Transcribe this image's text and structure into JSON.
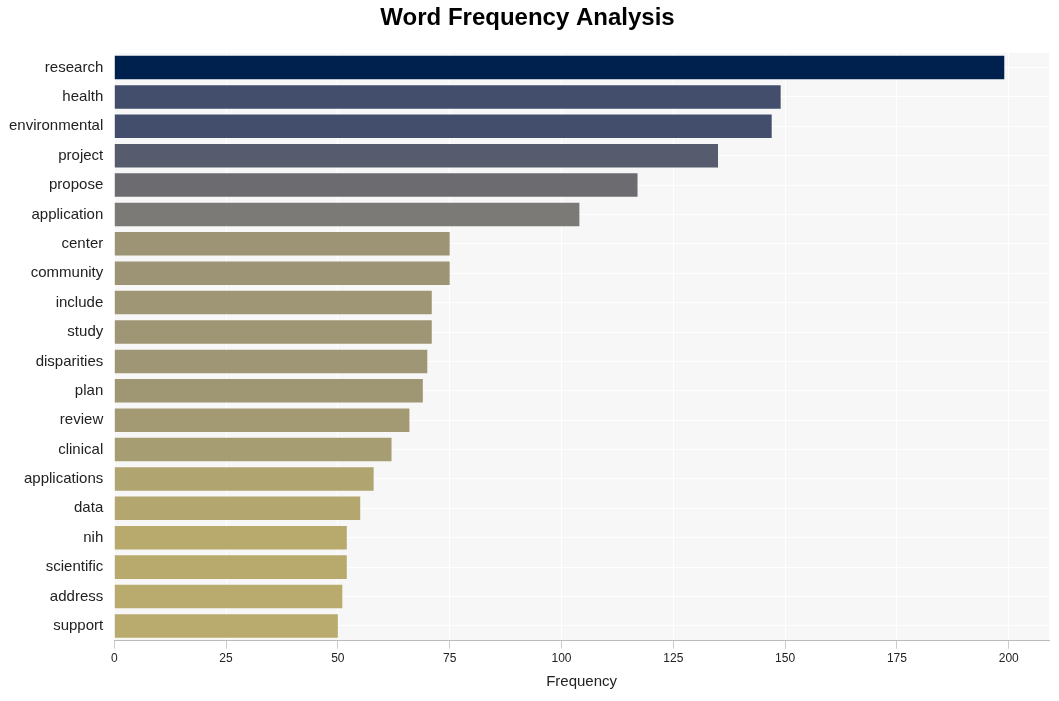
{
  "chart_data": {
    "type": "bar",
    "orientation": "horizontal",
    "title": "Word Frequency Analysis",
    "x_label": "Frequency",
    "categories": [
      "research",
      "health",
      "environmental",
      "project",
      "propose",
      "application",
      "center",
      "community",
      "include",
      "study",
      "disparities",
      "plan",
      "review",
      "clinical",
      "applications",
      "data",
      "nih",
      "scientific",
      "address",
      "support"
    ],
    "values": [
      199,
      149,
      147,
      135,
      117,
      104,
      75,
      75,
      71,
      71,
      70,
      69,
      66,
      62,
      58,
      55,
      52,
      52,
      51,
      50
    ],
    "colors": [
      "#00204e",
      "#434e6c",
      "#434e6c",
      "#575b6e",
      "#6b6b70",
      "#7b7a77",
      "#9c9474",
      "#9c9474",
      "#9e9674",
      "#9e9674",
      "#9e9674",
      "#9f9674",
      "#a39a74",
      "#a69d73",
      "#b0a470",
      "#b3a66f",
      "#b8aa6d",
      "#b8aa6d",
      "#b9ab6d",
      "#b9ab6d"
    ],
    "xlim": [
      0,
      209
    ],
    "xticks": [
      0,
      25,
      50,
      75,
      100,
      125,
      150,
      175,
      200
    ],
    "grid": true
  }
}
